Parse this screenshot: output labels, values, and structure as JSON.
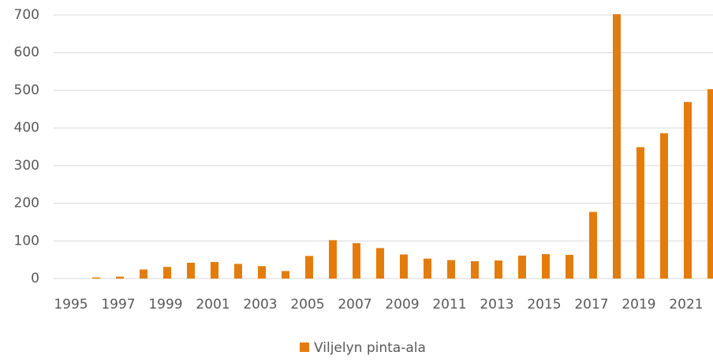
{
  "chart_data": {
    "type": "bar",
    "categories": [
      "1995",
      null,
      "1997",
      null,
      "1999",
      null,
      "2001",
      null,
      "2003",
      null,
      "2005",
      null,
      "2007",
      null,
      "2009",
      null,
      "2011",
      null,
      "2013",
      null,
      "2015",
      null,
      "2017",
      null,
      "2019",
      null,
      "2021",
      null
    ],
    "series": [
      {
        "name": "Viljelyn pinta-ala",
        "color": "#e47c0c",
        "values": [
          0,
          3,
          5,
          24,
          31,
          42,
          44,
          39,
          33,
          20,
          60,
          102,
          94,
          81,
          64,
          53,
          49,
          46,
          48,
          61,
          65,
          63,
          177,
          702,
          349,
          386,
          469,
          503
        ]
      }
    ],
    "ylim": [
      0,
      700
    ],
    "yticks": [
      0,
      100,
      200,
      300,
      400,
      500,
      600,
      700
    ],
    "grid": true,
    "legend": "bottom"
  }
}
